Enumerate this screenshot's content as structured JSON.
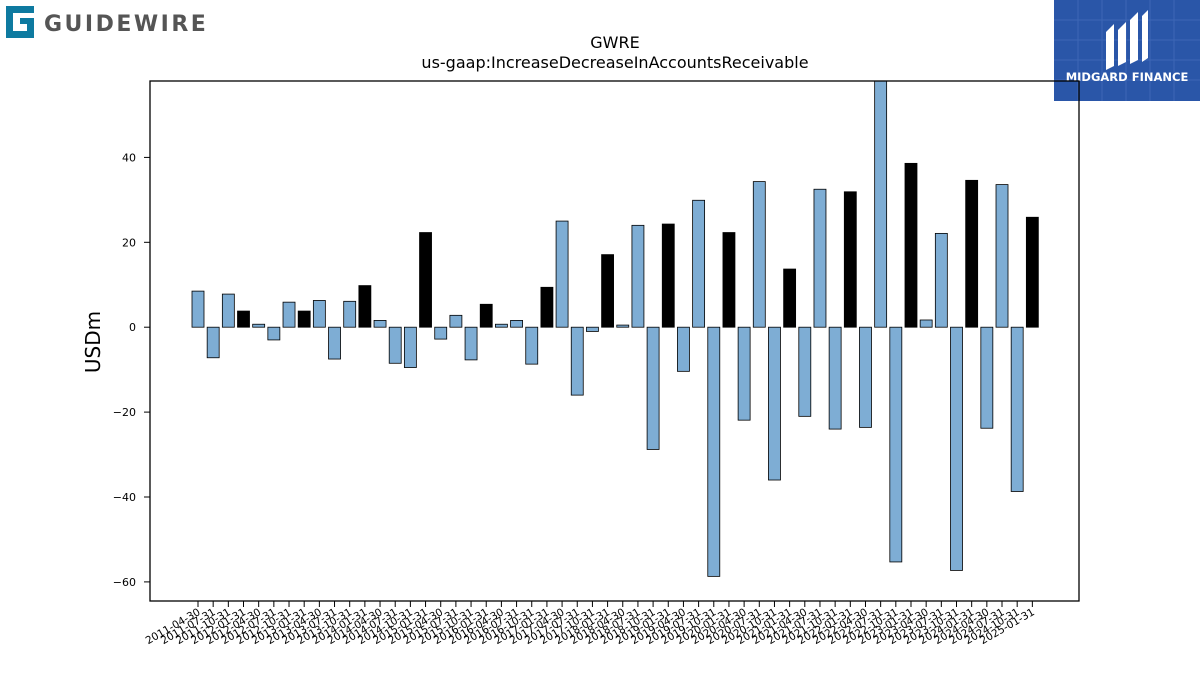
{
  "brand": {
    "left_logo_text": "GUIDEWIRE",
    "right_logo_text": "MIDGARD FINANCE",
    "right_logo_color": "#2a56a8",
    "left_logo_color": "#0e7aa0",
    "left_logo_text_color": "#555555"
  },
  "chart_data": {
    "type": "bar",
    "title": "GWRE",
    "subtitle": "us-gaap:IncreaseDecreaseInAccountsReceivable",
    "xlabel": "",
    "ylabel": "USDm",
    "ylim": [
      -64.5,
      58
    ],
    "yticks": [
      40,
      20,
      0,
      -20,
      -40,
      -60
    ],
    "ytick_labels": [
      "40",
      "20",
      "0",
      "−20",
      "−40",
      "−60"
    ],
    "grid": false,
    "colors": {
      "quarterly": "#7eadd4",
      "annual": "#000000"
    },
    "categories": [
      "2011-04-30",
      "2011-07-31",
      "2011-10-31",
      "2012-01-31",
      "2012-04-30",
      "2012-07-31",
      "2012-10-31",
      "2013-01-31",
      "2013-04-30",
      "2013-07-31",
      "2013-10-31",
      "2014-01-31",
      "2014-04-30",
      "2014-07-31",
      "2014-10-31",
      "2015-01-31",
      "2015-04-30",
      "2015-07-31",
      "2015-10-31",
      "2016-01-31",
      "2016-04-30",
      "2016-07-31",
      "2016-10-31",
      "2017-01-31",
      "2017-04-30",
      "2017-07-31",
      "2017-10-31",
      "2018-01-31",
      "2018-04-30",
      "2018-07-31",
      "2018-10-31",
      "2019-01-31",
      "2019-04-30",
      "2019-07-31",
      "2019-10-31",
      "2020-01-31",
      "2020-04-30",
      "2020-07-31",
      "2020-10-31",
      "2021-01-31",
      "2021-04-30",
      "2021-07-31",
      "2021-10-31",
      "2022-01-31",
      "2022-04-30",
      "2022-07-31",
      "2022-10-31",
      "2023-01-31",
      "2023-04-30",
      "2023-07-31",
      "2023-10-31",
      "2024-01-31",
      "2024-04-30",
      "2024-07-31",
      "2024-10-31",
      "2025-01-31"
    ],
    "values": [
      8.5,
      -7.2,
      7.8,
      3.8,
      0.7,
      -3.0,
      5.9,
      3.8,
      6.3,
      -7.5,
      6.1,
      9.8,
      1.6,
      -8.5,
      -9.5,
      22.3,
      -2.8,
      2.8,
      -7.7,
      5.4,
      0.7,
      1.6,
      -8.7,
      9.4,
      25.0,
      -16.0,
      -1.0,
      17.1,
      0.5,
      24.0,
      -28.8,
      24.3,
      -10.4,
      29.9,
      -58.7,
      22.3,
      -21.9,
      34.3,
      -36.0,
      13.7,
      -21.0,
      32.5,
      -24.0,
      31.9,
      -23.6,
      58.0,
      -55.3,
      38.6,
      1.7,
      22.1,
      -57.3,
      34.6,
      -23.8,
      33.6,
      -38.7,
      25.9
    ],
    "bar_kind": [
      "q",
      "q",
      "q",
      "a",
      "q",
      "q",
      "q",
      "a",
      "q",
      "q",
      "q",
      "a",
      "q",
      "q",
      "q",
      "a",
      "q",
      "q",
      "q",
      "a",
      "q",
      "q",
      "q",
      "a",
      "q",
      "q",
      "q",
      "a",
      "q",
      "q",
      "q",
      "a",
      "q",
      "q",
      "q",
      "a",
      "q",
      "q",
      "q",
      "a",
      "q",
      "q",
      "q",
      "a",
      "q",
      "q",
      "q",
      "a",
      "q",
      "q",
      "q",
      "a",
      "q",
      "q",
      "q",
      "a"
    ]
  }
}
